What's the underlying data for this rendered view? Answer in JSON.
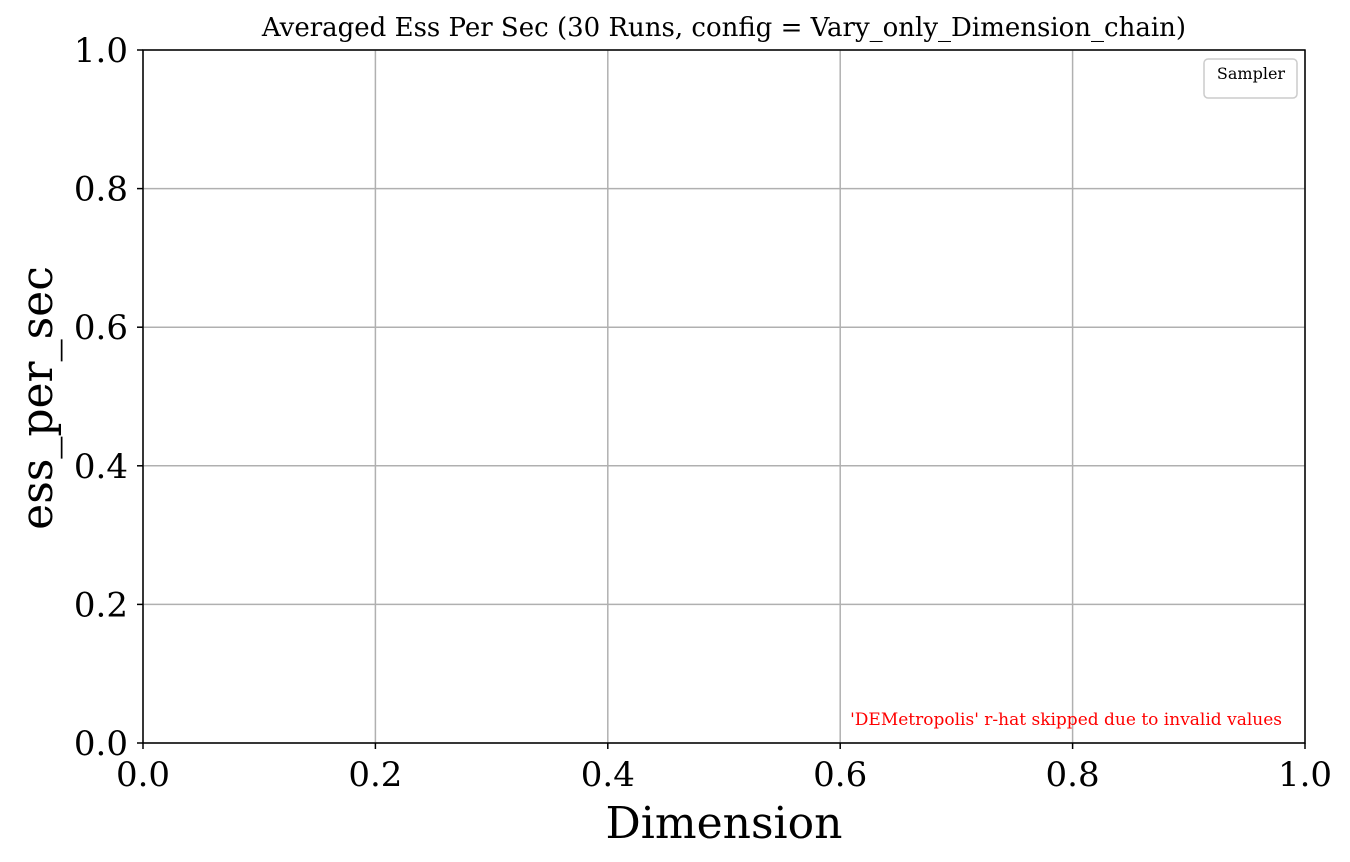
{
  "chart_data": {
    "type": "line",
    "title": "Averaged Ess Per Sec (30 Runs, config = Vary_only_Dimension_chain)",
    "xlabel": "Dimension",
    "ylabel": "ess_per_sec",
    "xlim": [
      0.0,
      1.0
    ],
    "ylim": [
      0.0,
      1.0
    ],
    "xticks": [
      "0.0",
      "0.2",
      "0.4",
      "0.6",
      "0.8",
      "1.0"
    ],
    "yticks": [
      "0.0",
      "0.2",
      "0.4",
      "0.6",
      "0.8",
      "1.0"
    ],
    "grid": true,
    "legend": {
      "title": "Sampler",
      "placement": "top-right",
      "entries": []
    },
    "series": [],
    "annotation": "'DEMetropolis' r-hat skipped due to invalid values",
    "colors": {
      "annotation": "#ff0000",
      "grid": "#b0b0b0",
      "axis": "#000000"
    }
  }
}
